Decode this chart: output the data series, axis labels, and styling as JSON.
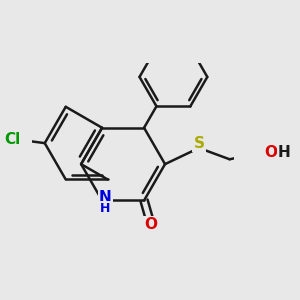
{
  "bg_color": "#e8e8e8",
  "bond_color": "#1a1a1a",
  "bond_lw": 1.8,
  "atom_colors": {
    "Cl": "#009900",
    "N": "#0000dd",
    "O": "#dd0000",
    "S": "#aaaa00",
    "C": "#1a1a1a"
  },
  "fs": 11,
  "fs_sub": 9
}
